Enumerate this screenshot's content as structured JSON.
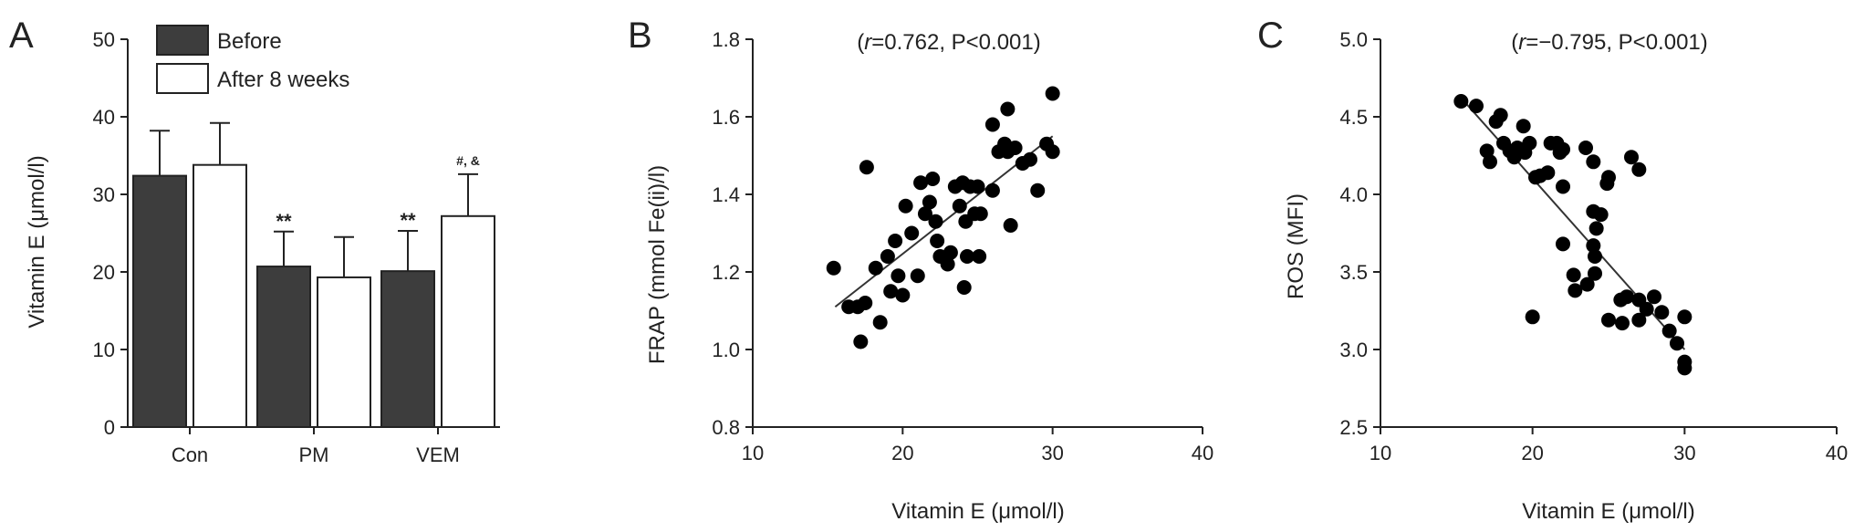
{
  "colors": {
    "before": "#3d3d3d",
    "after": "#ffffff",
    "ink": "#222222",
    "point": "#000000"
  },
  "chart_data": [
    {
      "panel": "A",
      "type": "bar",
      "ylabel": "Vitamin E (μmol/l)",
      "ylim": [
        0,
        50
      ],
      "yticks": [
        0,
        10,
        20,
        30,
        40,
        50
      ],
      "categories": [
        "Con",
        "PM",
        "VEM"
      ],
      "series": [
        {
          "name": "Before",
          "color": "#3d3d3d",
          "values": [
            32.4,
            20.7,
            20.1
          ],
          "errors": [
            5.8,
            4.5,
            5.2
          ]
        },
        {
          "name": "After 8 weeks",
          "color": "#ffffff",
          "values": [
            33.8,
            19.3,
            27.2
          ],
          "errors": [
            5.4,
            5.2,
            5.4
          ]
        }
      ],
      "annotations": [
        {
          "text": "**",
          "category": 1,
          "series": 0
        },
        {
          "text": "**",
          "category": 2,
          "series": 0
        },
        {
          "text": "#, &",
          "category": 2,
          "series": 1
        }
      ],
      "legend": "top-left"
    },
    {
      "panel": "B",
      "type": "scatter",
      "annotation": "(r=0.762, P<0.001)",
      "xlabel": "Vitamin E (μmol/l)",
      "ylabel": "FRAP (mmol Fe(ii)/l)",
      "xlim": [
        10,
        40
      ],
      "ylim": [
        0.8,
        1.8
      ],
      "xticks": [
        10,
        20,
        30,
        40
      ],
      "yticks": [
        0.8,
        1.0,
        1.2,
        1.4,
        1.6,
        1.8
      ],
      "points": [
        [
          15.4,
          1.21
        ],
        [
          16.4,
          1.11
        ],
        [
          17.0,
          1.11
        ],
        [
          17.5,
          1.12
        ],
        [
          17.2,
          1.02
        ],
        [
          17.6,
          1.47
        ],
        [
          18.5,
          1.07
        ],
        [
          18.2,
          1.21
        ],
        [
          19.0,
          1.24
        ],
        [
          19.5,
          1.28
        ],
        [
          19.2,
          1.15
        ],
        [
          19.7,
          1.19
        ],
        [
          20.0,
          1.14
        ],
        [
          20.2,
          1.37
        ],
        [
          20.6,
          1.3
        ],
        [
          21.0,
          1.19
        ],
        [
          21.2,
          1.43
        ],
        [
          21.5,
          1.35
        ],
        [
          21.8,
          1.38
        ],
        [
          22.0,
          1.44
        ],
        [
          22.2,
          1.33
        ],
        [
          22.3,
          1.28
        ],
        [
          22.5,
          1.24
        ],
        [
          23.0,
          1.22
        ],
        [
          23.2,
          1.25
        ],
        [
          23.5,
          1.42
        ],
        [
          23.8,
          1.37
        ],
        [
          24.0,
          1.43
        ],
        [
          24.1,
          1.16
        ],
        [
          24.2,
          1.33
        ],
        [
          24.3,
          1.24
        ],
        [
          24.5,
          1.42
        ],
        [
          24.8,
          1.35
        ],
        [
          25.0,
          1.42
        ],
        [
          25.1,
          1.24
        ],
        [
          25.2,
          1.35
        ],
        [
          26.0,
          1.41
        ],
        [
          26.0,
          1.58
        ],
        [
          26.4,
          1.51
        ],
        [
          26.8,
          1.53
        ],
        [
          27.0,
          1.51
        ],
        [
          27.0,
          1.62
        ],
        [
          27.2,
          1.32
        ],
        [
          27.5,
          1.52
        ],
        [
          28.0,
          1.48
        ],
        [
          28.5,
          1.49
        ],
        [
          29.0,
          1.41
        ],
        [
          29.6,
          1.53
        ],
        [
          30.0,
          1.66
        ],
        [
          30.0,
          1.51
        ]
      ],
      "trend": [
        [
          15.5,
          1.11
        ],
        [
          30.0,
          1.55
        ]
      ]
    },
    {
      "panel": "C",
      "type": "scatter",
      "annotation": "(r=−0.795, P<0.001)",
      "xlabel": "Vitamin E (μmol/l)",
      "ylabel": "ROS (MFI)",
      "xlim": [
        10,
        40
      ],
      "ylim": [
        2.5,
        5.0
      ],
      "xticks": [
        10,
        20,
        30,
        40
      ],
      "yticks": [
        2.5,
        3.0,
        3.5,
        4.0,
        4.5,
        5.0
      ],
      "points": [
        [
          15.3,
          4.6
        ],
        [
          16.3,
          4.57
        ],
        [
          17.0,
          4.28
        ],
        [
          17.2,
          4.21
        ],
        [
          17.6,
          4.47
        ],
        [
          17.9,
          4.51
        ],
        [
          18.1,
          4.33
        ],
        [
          18.5,
          4.28
        ],
        [
          18.8,
          4.24
        ],
        [
          19.0,
          4.3
        ],
        [
          19.4,
          4.44
        ],
        [
          19.5,
          4.27
        ],
        [
          19.8,
          4.33
        ],
        [
          20.0,
          3.21
        ],
        [
          20.2,
          4.11
        ],
        [
          20.5,
          4.12
        ],
        [
          21.0,
          4.14
        ],
        [
          21.2,
          4.33
        ],
        [
          21.6,
          4.33
        ],
        [
          21.8,
          4.27
        ],
        [
          22.0,
          4.29
        ],
        [
          22.0,
          4.05
        ],
        [
          22.0,
          3.68
        ],
        [
          22.7,
          3.48
        ],
        [
          22.8,
          3.38
        ],
        [
          23.5,
          4.3
        ],
        [
          23.6,
          3.42
        ],
        [
          24.0,
          4.21
        ],
        [
          24.0,
          3.89
        ],
        [
          24.0,
          3.67
        ],
        [
          24.1,
          3.49
        ],
        [
          24.1,
          3.6
        ],
        [
          24.2,
          3.78
        ],
        [
          24.5,
          3.87
        ],
        [
          24.9,
          4.07
        ],
        [
          25.0,
          4.11
        ],
        [
          25.0,
          3.19
        ],
        [
          25.8,
          3.32
        ],
        [
          25.9,
          3.17
        ],
        [
          26.2,
          3.34
        ],
        [
          26.5,
          4.24
        ],
        [
          27.0,
          4.16
        ],
        [
          27.0,
          3.19
        ],
        [
          27.0,
          3.32
        ],
        [
          27.5,
          3.26
        ],
        [
          28.0,
          3.34
        ],
        [
          28.5,
          3.24
        ],
        [
          29.0,
          3.12
        ],
        [
          29.5,
          3.04
        ],
        [
          30.0,
          3.21
        ],
        [
          30.0,
          2.92
        ],
        [
          30.0,
          2.88
        ]
      ],
      "trend": [
        [
          15.5,
          4.6
        ],
        [
          30.0,
          3.0
        ]
      ]
    }
  ]
}
